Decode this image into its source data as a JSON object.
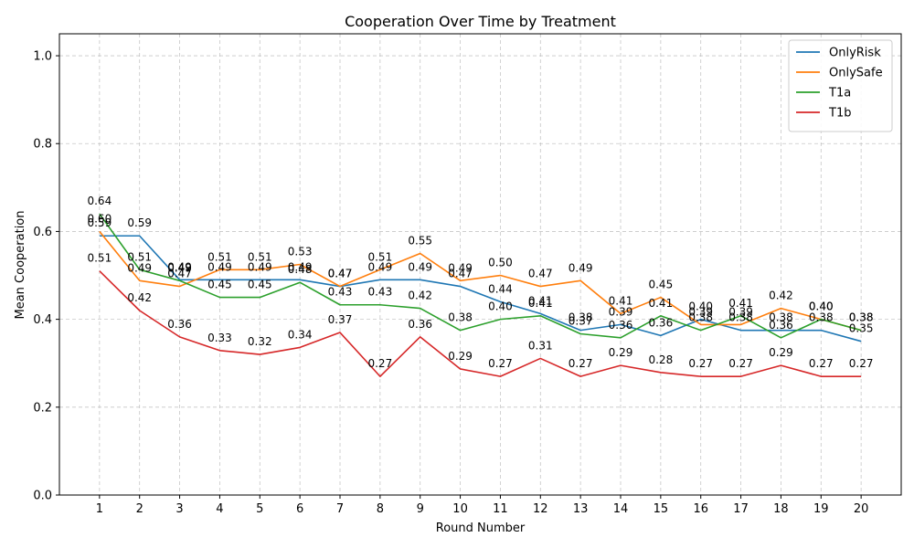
{
  "chart_data": {
    "type": "line",
    "title": "Cooperation Over Time by Treatment",
    "xlabel": "Round Number",
    "ylabel": "Mean Cooperation",
    "x": [
      1,
      2,
      3,
      4,
      5,
      6,
      7,
      8,
      9,
      10,
      11,
      12,
      13,
      14,
      15,
      16,
      17,
      18,
      19,
      20
    ],
    "ylim": [
      0,
      1.05
    ],
    "yticks": [
      0.0,
      0.2,
      0.4,
      0.6,
      0.8,
      1.0
    ],
    "grid": true,
    "legend_position": "top-right",
    "label_format": "2-decimals",
    "series": [
      {
        "name": "OnlyRisk",
        "color": "#1f77b4",
        "values": [
          0.59,
          0.59,
          0.49,
          0.49,
          0.49,
          0.49,
          0.475,
          0.49,
          0.49,
          0.475,
          0.44,
          0.413,
          0.375,
          0.388,
          0.363,
          0.4,
          0.375,
          0.375,
          0.375,
          0.35
        ]
      },
      {
        "name": "OnlySafe",
        "color": "#ff7f0e",
        "values": [
          0.6,
          0.488,
          0.475,
          0.513,
          0.513,
          0.525,
          0.475,
          0.513,
          0.55,
          0.488,
          0.5,
          0.475,
          0.488,
          0.413,
          0.45,
          0.388,
          0.388,
          0.425,
          0.4,
          0.375
        ]
      },
      {
        "name": "T1a",
        "color": "#2ca02c",
        "values": [
          0.64,
          0.513,
          0.488,
          0.45,
          0.45,
          0.484,
          0.433,
          0.433,
          0.425,
          0.375,
          0.4,
          0.408,
          0.367,
          0.358,
          0.408,
          0.375,
          0.408,
          0.358,
          0.4,
          0.375
        ]
      },
      {
        "name": "T1b",
        "color": "#d62728",
        "values": [
          0.51,
          0.42,
          0.36,
          0.329,
          0.32,
          0.336,
          0.37,
          0.27,
          0.36,
          0.287,
          0.27,
          0.311,
          0.27,
          0.295,
          0.279,
          0.27,
          0.27,
          0.295,
          0.27,
          0.27
        ]
      }
    ]
  }
}
